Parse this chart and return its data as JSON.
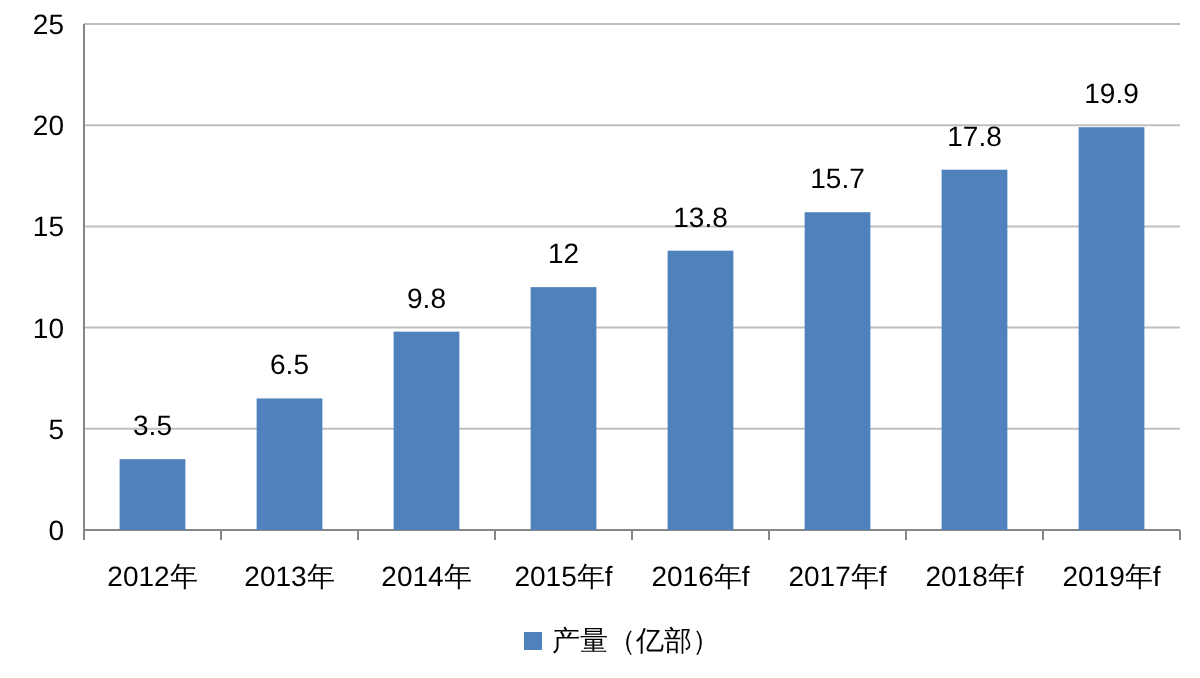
{
  "chart_data": {
    "type": "bar",
    "categories": [
      "2012年",
      "2013年",
      "2014年",
      "2015年f",
      "2016年f",
      "2017年f",
      "2018年f",
      "2019年f"
    ],
    "series": [
      {
        "name": "产量（亿部）",
        "color": "#4f81bd",
        "values": [
          3.5,
          6.5,
          9.8,
          12,
          13.8,
          15.7,
          17.8,
          19.9
        ]
      }
    ],
    "ylim": [
      0,
      25
    ],
    "yticks": [
      0,
      5,
      10,
      15,
      20,
      25
    ],
    "grid": "y",
    "legend": "bottom",
    "data_labels": true
  }
}
